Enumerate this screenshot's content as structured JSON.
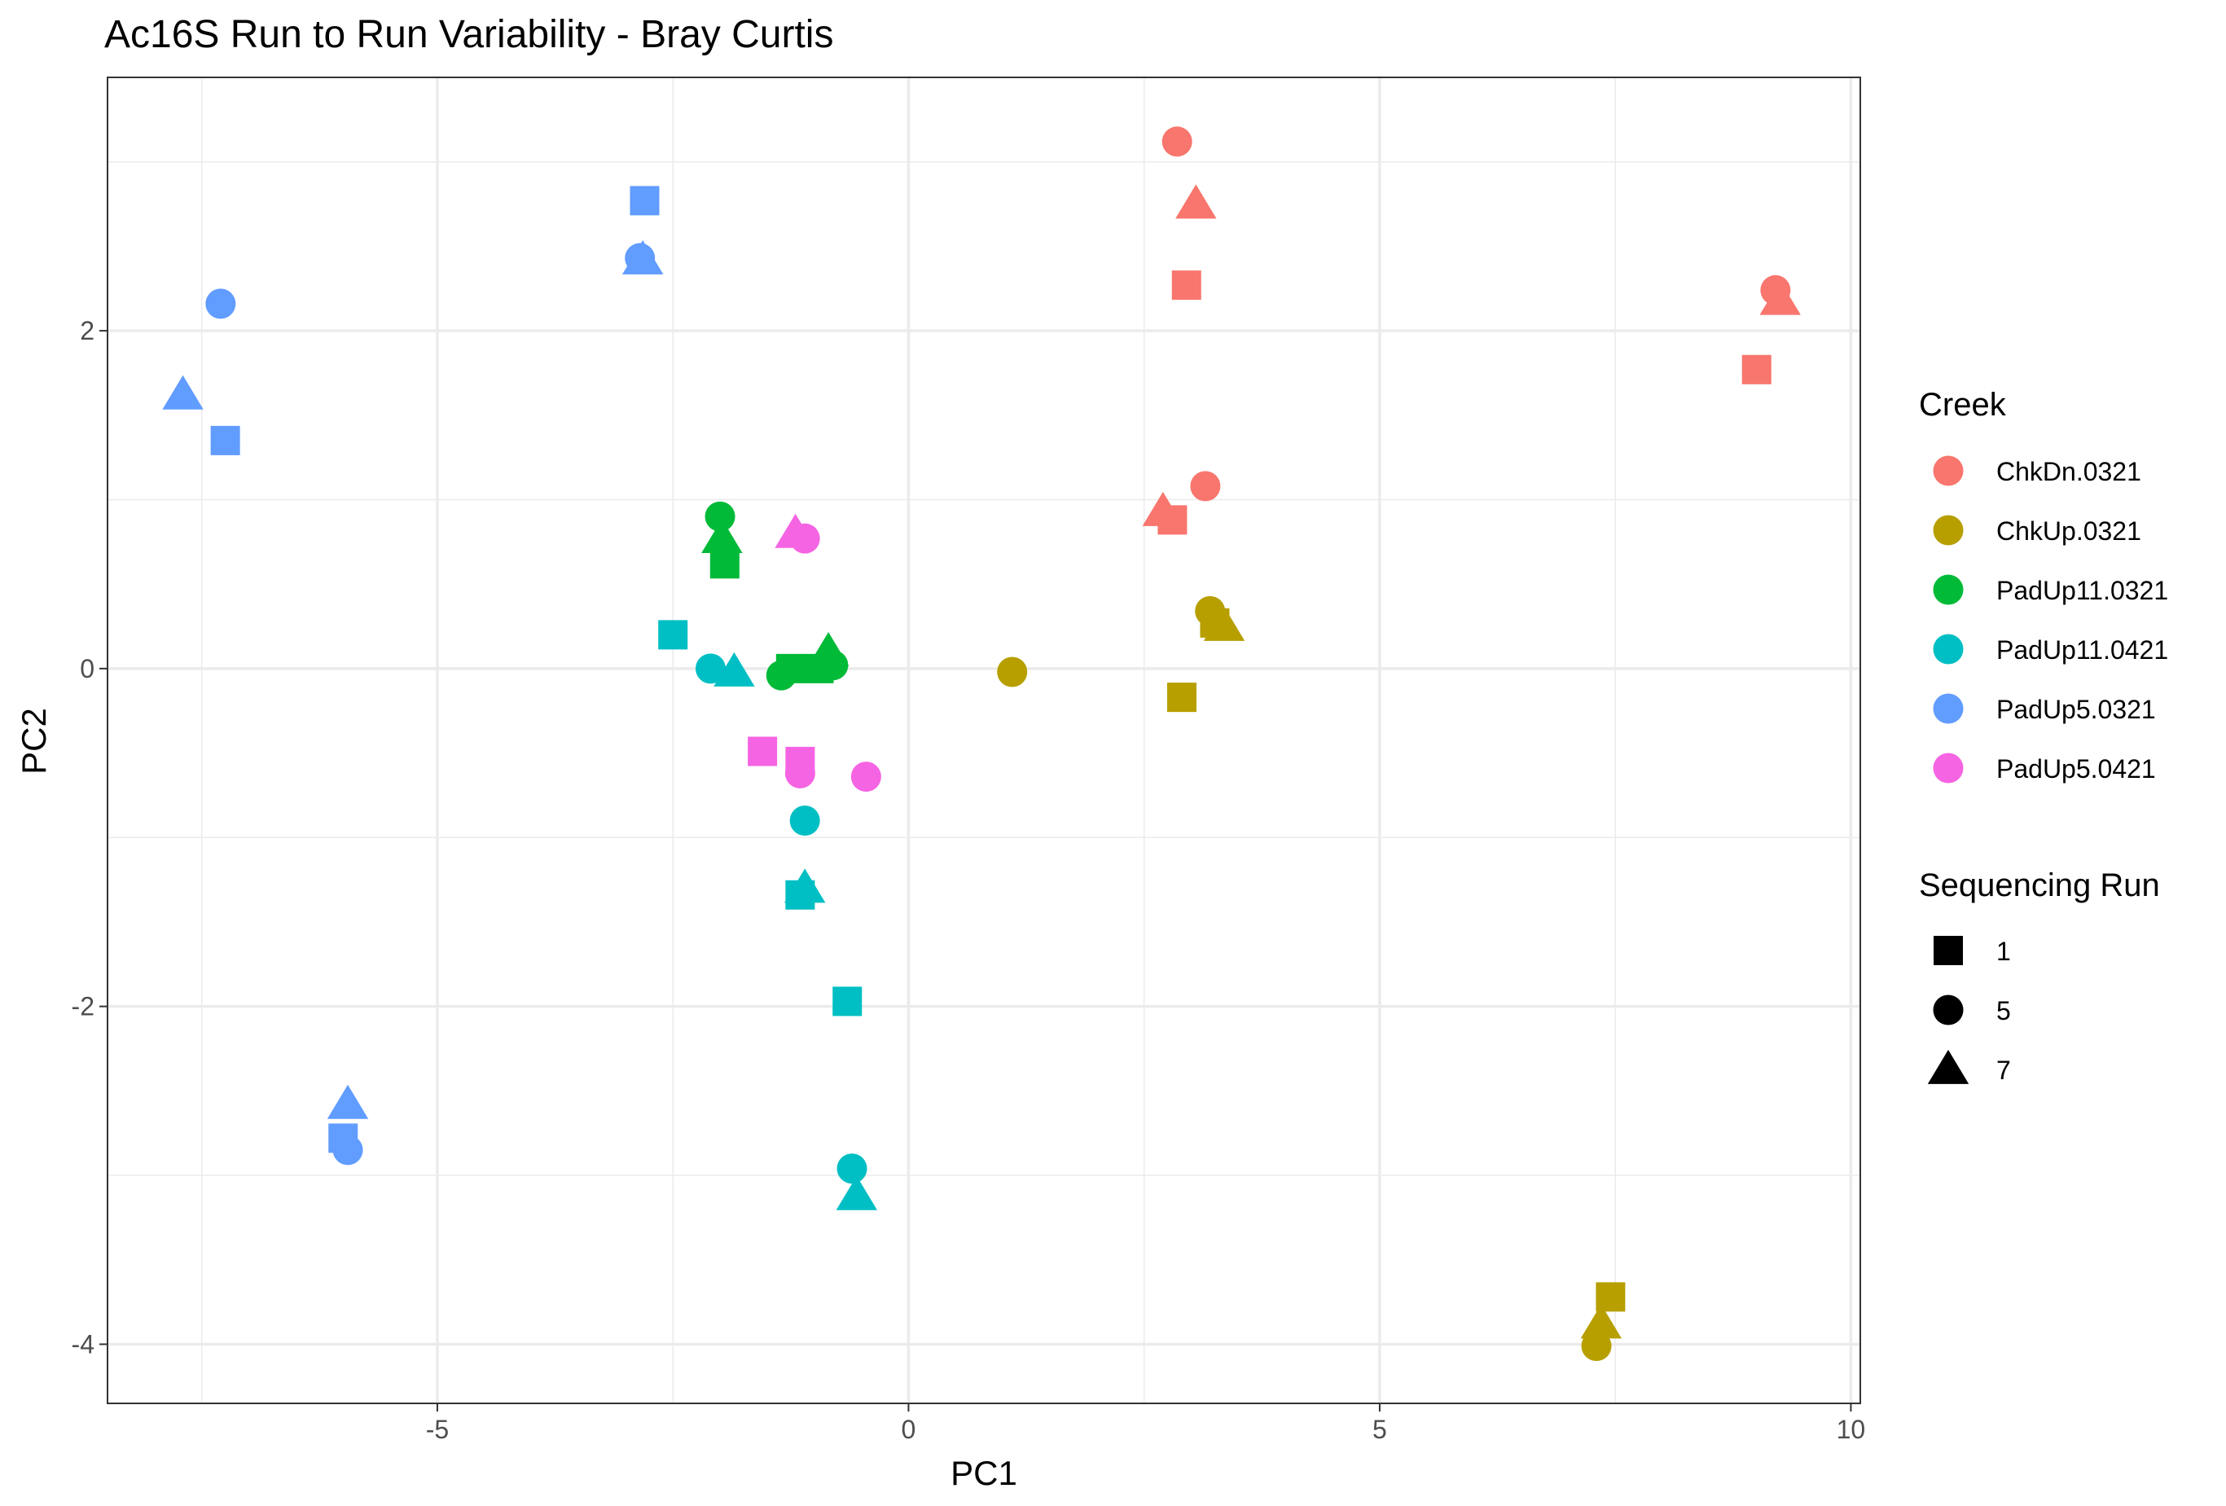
{
  "chart_data": {
    "type": "scatter",
    "title": "Ac16S Run to Run Variability - Bray Curtis",
    "xlabel": "PC1",
    "ylabel": "PC2",
    "xlim": [
      -8.5,
      10.1
    ],
    "ylim": [
      -4.35,
      3.5
    ],
    "x_ticks": [
      -5,
      0,
      5,
      10
    ],
    "y_ticks": [
      -4,
      -2,
      0,
      2
    ],
    "x_tick_labels": [
      "-5",
      "0",
      "5",
      "10"
    ],
    "y_tick_labels": [
      "-4",
      "-2",
      "0",
      "2"
    ],
    "grid": true,
    "legend_position": "right",
    "color_legend": {
      "title": "Creek",
      "entries": [
        {
          "label": "ChkDn.0321",
          "color": "#F8766D"
        },
        {
          "label": "ChkUp.0321",
          "color": "#B79F00"
        },
        {
          "label": "PadUp11.0321",
          "color": "#00BA38"
        },
        {
          "label": "PadUp11.0421",
          "color": "#00BFC4"
        },
        {
          "label": "PadUp5.0321",
          "color": "#619CFF"
        },
        {
          "label": "PadUp5.0421",
          "color": "#F564E3"
        }
      ]
    },
    "shape_legend": {
      "title": "Sequencing Run",
      "entries": [
        {
          "label": "1",
          "shape": "square"
        },
        {
          "label": "5",
          "shape": "circle"
        },
        {
          "label": "7",
          "shape": "triangle"
        }
      ]
    },
    "points": [
      {
        "creek": "ChkDn.0321",
        "run": "5",
        "x": 2.85,
        "y": 3.12
      },
      {
        "creek": "ChkDn.0321",
        "run": "7",
        "x": 3.05,
        "y": 2.75
      },
      {
        "creek": "ChkDn.0321",
        "run": "1",
        "x": 2.95,
        "y": 2.27
      },
      {
        "creek": "ChkDn.0321",
        "run": "5",
        "x": 9.2,
        "y": 2.24
      },
      {
        "creek": "ChkDn.0321",
        "run": "7",
        "x": 9.25,
        "y": 2.18
      },
      {
        "creek": "ChkDn.0321",
        "run": "1",
        "x": 9.0,
        "y": 1.77
      },
      {
        "creek": "ChkDn.0321",
        "run": "5",
        "x": 3.15,
        "y": 1.08
      },
      {
        "creek": "ChkDn.0321",
        "run": "7",
        "x": 2.7,
        "y": 0.93
      },
      {
        "creek": "ChkDn.0321",
        "run": "1",
        "x": 2.8,
        "y": 0.88
      },
      {
        "creek": "ChkUp.0321",
        "run": "5",
        "x": 3.2,
        "y": 0.34
      },
      {
        "creek": "ChkUp.0321",
        "run": "1",
        "x": 3.25,
        "y": 0.27
      },
      {
        "creek": "ChkUp.0321",
        "run": "7",
        "x": 3.35,
        "y": 0.25
      },
      {
        "creek": "ChkUp.0321",
        "run": "1",
        "x": 2.9,
        "y": -0.17
      },
      {
        "creek": "ChkUp.0321",
        "run": "5",
        "x": 1.1,
        "y": -0.02
      },
      {
        "creek": "ChkUp.0321",
        "run": "1",
        "x": 7.45,
        "y": -3.72
      },
      {
        "creek": "ChkUp.0321",
        "run": "7",
        "x": 7.35,
        "y": -3.88
      },
      {
        "creek": "ChkUp.0321",
        "run": "5",
        "x": 7.3,
        "y": -4.01
      },
      {
        "creek": "PadUp11.0321",
        "run": "5",
        "x": -2.0,
        "y": 0.9
      },
      {
        "creek": "PadUp11.0321",
        "run": "7",
        "x": -1.98,
        "y": 0.77
      },
      {
        "creek": "PadUp11.0321",
        "run": "1",
        "x": -1.95,
        "y": 0.62
      },
      {
        "creek": "PadUp11.0321",
        "run": "1",
        "x": -1.25,
        "y": 0.0
      },
      {
        "creek": "PadUp11.0321",
        "run": "5",
        "x": -1.35,
        "y": -0.04
      },
      {
        "creek": "PadUp11.0321",
        "run": "1",
        "x": -0.95,
        "y": 0.0
      },
      {
        "creek": "PadUp11.0321",
        "run": "7",
        "x": -0.85,
        "y": 0.1
      },
      {
        "creek": "PadUp11.0321",
        "run": "5",
        "x": -0.8,
        "y": 0.02
      },
      {
        "creek": "PadUp11.0421",
        "run": "1",
        "x": -2.5,
        "y": 0.2
      },
      {
        "creek": "PadUp11.0421",
        "run": "5",
        "x": -2.1,
        "y": 0.0
      },
      {
        "creek": "PadUp11.0421",
        "run": "7",
        "x": -1.85,
        "y": -0.02
      },
      {
        "creek": "PadUp11.0421",
        "run": "5",
        "x": -1.1,
        "y": -0.9
      },
      {
        "creek": "PadUp11.0421",
        "run": "7",
        "x": -1.1,
        "y": -1.3
      },
      {
        "creek": "PadUp11.0421",
        "run": "1",
        "x": -1.15,
        "y": -1.34
      },
      {
        "creek": "PadUp11.0421",
        "run": "1",
        "x": -0.65,
        "y": -1.97
      },
      {
        "creek": "PadUp11.0421",
        "run": "5",
        "x": -0.6,
        "y": -2.96
      },
      {
        "creek": "PadUp11.0421",
        "run": "7",
        "x": -0.55,
        "y": -3.12
      },
      {
        "creek": "PadUp5.0321",
        "run": "1",
        "x": -2.8,
        "y": 2.77
      },
      {
        "creek": "PadUp5.0321",
        "run": "5",
        "x": -2.85,
        "y": 2.43
      },
      {
        "creek": "PadUp5.0321",
        "run": "7",
        "x": -2.82,
        "y": 2.42
      },
      {
        "creek": "PadUp5.0321",
        "run": "5",
        "x": -7.3,
        "y": 2.16
      },
      {
        "creek": "PadUp5.0321",
        "run": "7",
        "x": -7.7,
        "y": 1.62
      },
      {
        "creek": "PadUp5.0321",
        "run": "1",
        "x": -7.25,
        "y": 1.35
      },
      {
        "creek": "PadUp5.0321",
        "run": "7",
        "x": -5.95,
        "y": -2.58
      },
      {
        "creek": "PadUp5.0321",
        "run": "1",
        "x": -6.0,
        "y": -2.78
      },
      {
        "creek": "PadUp5.0321",
        "run": "5",
        "x": -5.95,
        "y": -2.85
      },
      {
        "creek": "PadUp5.0421",
        "run": "7",
        "x": -1.2,
        "y": 0.8
      },
      {
        "creek": "PadUp5.0421",
        "run": "5",
        "x": -1.1,
        "y": 0.77
      },
      {
        "creek": "PadUp5.0421",
        "run": "1",
        "x": -1.55,
        "y": -0.49
      },
      {
        "creek": "PadUp5.0421",
        "run": "1",
        "x": -1.15,
        "y": -0.55
      },
      {
        "creek": "PadUp5.0421",
        "run": "5",
        "x": -1.15,
        "y": -0.62
      },
      {
        "creek": "PadUp5.0421",
        "run": "5",
        "x": -0.45,
        "y": -0.64
      }
    ]
  }
}
